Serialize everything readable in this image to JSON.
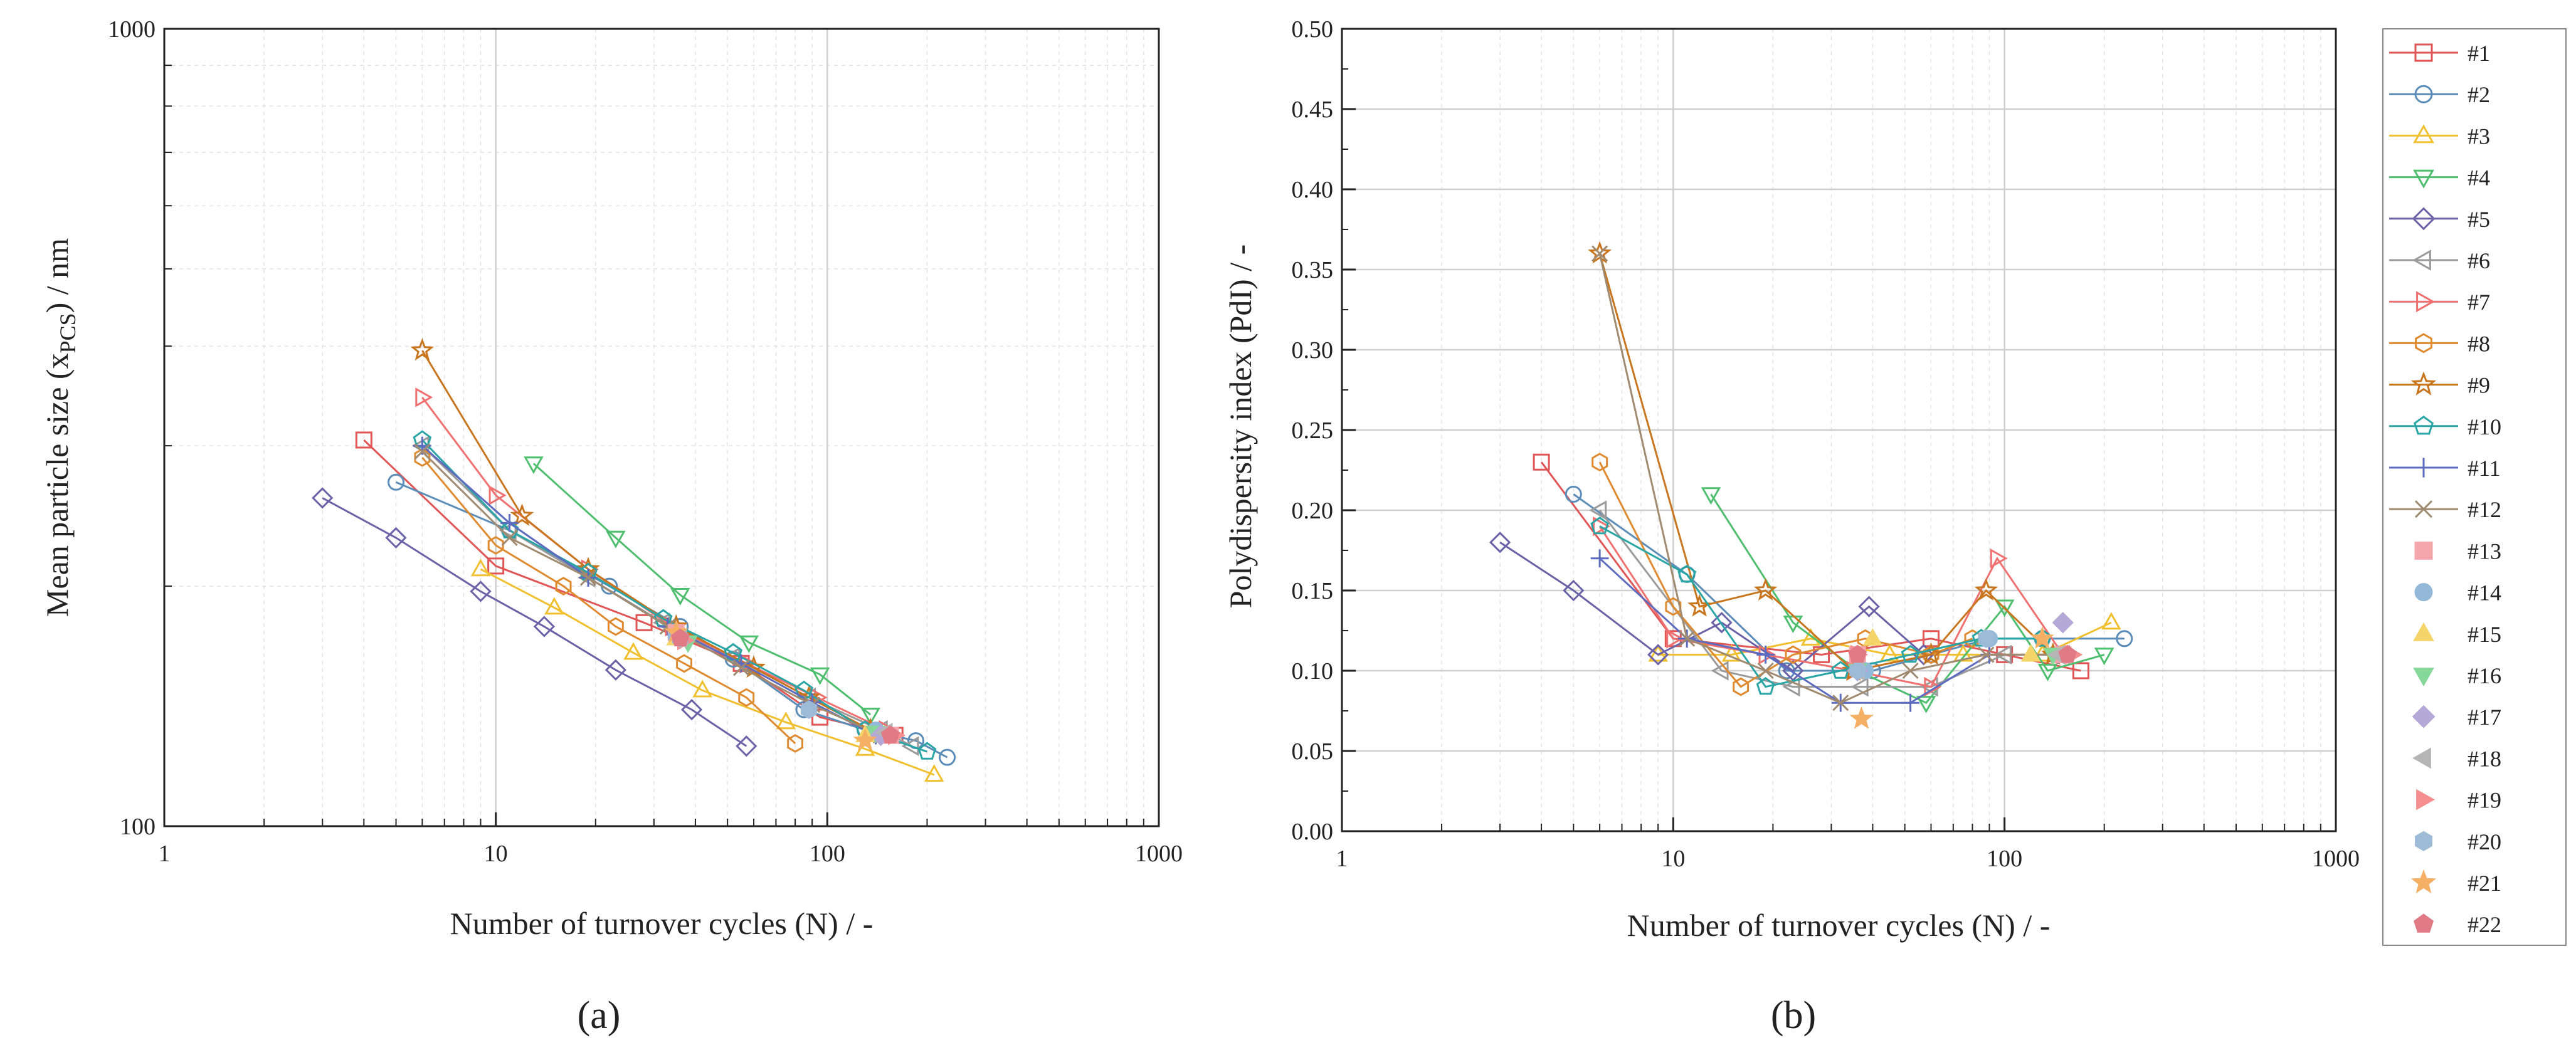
{
  "chart_data": [
    {
      "type": "line",
      "panel_label": "(a)",
      "xlabel": "Number of turnover cycles (N) / -",
      "ylabel_main": "Mean particle size (x",
      "ylabel_sub": "PCS",
      "ylabel_tail": ") / nm",
      "xscale": "log",
      "yscale": "log",
      "xlim": [
        1,
        1000
      ],
      "ylim": [
        100,
        1000
      ],
      "xticks": [
        {
          "v": 1,
          "label": "1"
        },
        {
          "v": 10,
          "label": "10"
        },
        {
          "v": 100,
          "label": "100"
        },
        {
          "v": 1000,
          "label": "1000"
        }
      ],
      "yticks": [
        {
          "v": 100,
          "label": "100"
        },
        {
          "v": 1000,
          "label": "1000"
        }
      ],
      "grid": true,
      "series": [
        {
          "name": "#1",
          "x": [
            4,
            10,
            28,
            55,
            95,
            160
          ],
          "y": [
            305,
            212,
            180,
            160,
            137,
            130
          ]
        },
        {
          "name": "#2",
          "x": [
            5,
            11,
            22,
            36,
            52,
            85,
            130,
            185,
            230
          ],
          "y": [
            270,
            235,
            200,
            178,
            162,
            140,
            132,
            128,
            122
          ]
        },
        {
          "name": "#3",
          "x": [
            9,
            15,
            26,
            42,
            75,
            130,
            210
          ],
          "y": [
            210,
            188,
            165,
            148,
            135,
            125,
            116
          ]
        },
        {
          "name": "#4",
          "x": [
            13,
            23,
            36,
            58,
            95,
            135
          ],
          "y": [
            285,
            230,
            195,
            170,
            155,
            138
          ]
        },
        {
          "name": "#5",
          "x": [
            3,
            5,
            9,
            14,
            23,
            39,
            57
          ],
          "y": [
            258,
            230,
            197,
            178,
            157,
            140,
            126
          ]
        },
        {
          "name": "#6",
          "x": [
            6,
            11,
            19,
            32,
            52,
            88,
            145,
            180
          ],
          "y": [
            300,
            235,
            205,
            180,
            163,
            145,
            132,
            126
          ]
        },
        {
          "name": "#7",
          "x": [
            6,
            10,
            19,
            34,
            57,
            93,
            150
          ],
          "y": [
            345,
            260,
            210,
            178,
            160,
            145,
            132
          ]
        },
        {
          "name": "#8",
          "x": [
            6,
            10,
            16,
            23,
            37,
            57,
            80
          ],
          "y": [
            290,
            225,
            200,
            178,
            160,
            145,
            127
          ]
        },
        {
          "name": "#9",
          "x": [
            6,
            12,
            19,
            35,
            60,
            88,
            135
          ],
          "y": [
            395,
            245,
            210,
            178,
            158,
            145,
            132
          ]
        },
        {
          "name": "#10",
          "x": [
            6,
            11,
            19,
            32,
            52,
            85,
            130,
            200
          ],
          "y": [
            305,
            235,
            208,
            182,
            165,
            148,
            132,
            124
          ]
        },
        {
          "name": "#11",
          "x": [
            6,
            11,
            19,
            33,
            55,
            90,
            140
          ],
          "y": [
            300,
            240,
            205,
            178,
            160,
            143,
            130
          ]
        },
        {
          "name": "#12",
          "x": [
            6,
            11,
            19,
            33,
            55,
            90,
            145
          ],
          "y": [
            295,
            230,
            205,
            178,
            158,
            142,
            130
          ]
        },
        {
          "name": "#13",
          "x": [
            35,
            155
          ],
          "y": [
            175,
            130
          ]
        },
        {
          "name": "#14",
          "x": [
            35,
            140
          ],
          "y": [
            173,
            132
          ]
        },
        {
          "name": "#15",
          "x": [
            35,
            130
          ],
          "y": [
            172,
            130
          ]
        },
        {
          "name": "#16",
          "x": [
            38,
            140
          ],
          "y": [
            170,
            131
          ]
        },
        {
          "name": "#17",
          "x": [
            36,
            145
          ],
          "y": [
            172,
            130
          ]
        },
        {
          "name": "#18",
          "x": [
            36,
            150
          ],
          "y": [
            172,
            131
          ]
        },
        {
          "name": "#19",
          "x": [
            37,
            160
          ],
          "y": [
            171,
            130
          ]
        },
        {
          "name": "#20",
          "x": [
            36,
            88
          ],
          "y": [
            172,
            140
          ]
        },
        {
          "name": "#21",
          "x": [
            35,
            130
          ],
          "y": [
            175,
            128
          ]
        },
        {
          "name": "#22",
          "x": [
            36,
            155
          ],
          "y": [
            172,
            130
          ]
        }
      ]
    },
    {
      "type": "line",
      "panel_label": "(b)",
      "xlabel": "Number of turnover cycles (N) / -",
      "ylabel": "Polydispersity index (PdI) / -",
      "xscale": "log",
      "yscale": "linear",
      "xlim": [
        1,
        1000
      ],
      "ylim": [
        0,
        0.5
      ],
      "xticks": [
        {
          "v": 1,
          "label": "1"
        },
        {
          "v": 10,
          "label": "10"
        },
        {
          "v": 100,
          "label": "100"
        },
        {
          "v": 1000,
          "label": "1000"
        }
      ],
      "yticks": [
        {
          "v": 0,
          "label": "0.00"
        },
        {
          "v": 0.05,
          "label": "0.05"
        },
        {
          "v": 0.1,
          "label": "0.10"
        },
        {
          "v": 0.15,
          "label": "0.15"
        },
        {
          "v": 0.2,
          "label": "0.20"
        },
        {
          "v": 0.25,
          "label": "0.25"
        },
        {
          "v": 0.3,
          "label": "0.30"
        },
        {
          "v": 0.35,
          "label": "0.35"
        },
        {
          "v": 0.4,
          "label": "0.40"
        },
        {
          "v": 0.45,
          "label": "0.45"
        },
        {
          "v": 0.5,
          "label": "0.50"
        }
      ],
      "grid": true,
      "series": [
        {
          "name": "#1",
          "x": [
            4,
            10,
            28,
            60,
            100,
            170
          ],
          "y": [
            0.23,
            0.12,
            0.11,
            0.12,
            0.11,
            0.1
          ]
        },
        {
          "name": "#2",
          "x": [
            5,
            11,
            22,
            40,
            60,
            90,
            130,
            230
          ],
          "y": [
            0.21,
            0.16,
            0.1,
            0.1,
            0.11,
            0.12,
            0.12,
            0.12
          ]
        },
        {
          "name": "#3",
          "x": [
            9,
            15,
            26,
            45,
            75,
            130,
            210
          ],
          "y": [
            0.11,
            0.11,
            0.12,
            0.11,
            0.11,
            0.11,
            0.13
          ]
        },
        {
          "name": "#4",
          "x": [
            13,
            23,
            36,
            58,
            100,
            135,
            200
          ],
          "y": [
            0.21,
            0.13,
            0.1,
            0.08,
            0.14,
            0.1,
            0.11
          ]
        },
        {
          "name": "#5",
          "x": [
            3,
            5,
            9,
            14,
            23,
            39,
            57
          ],
          "y": [
            0.18,
            0.15,
            0.11,
            0.13,
            0.1,
            0.14,
            0.11
          ]
        },
        {
          "name": "#6",
          "x": [
            6,
            14,
            23,
            37,
            60,
            100,
            150
          ],
          "y": [
            0.2,
            0.1,
            0.09,
            0.09,
            0.09,
            0.11,
            0.11
          ]
        },
        {
          "name": "#7",
          "x": [
            6,
            10,
            19,
            35,
            60,
            95,
            150
          ],
          "y": [
            0.19,
            0.12,
            0.11,
            0.1,
            0.09,
            0.17,
            0.11
          ]
        },
        {
          "name": "#8",
          "x": [
            6,
            10,
            16,
            23,
            38,
            60,
            80
          ],
          "y": [
            0.23,
            0.14,
            0.09,
            0.11,
            0.12,
            0.11,
            0.12
          ]
        },
        {
          "name": "#9",
          "x": [
            6,
            12,
            19,
            35,
            60,
            88,
            140
          ],
          "y": [
            0.36,
            0.14,
            0.15,
            0.1,
            0.11,
            0.15,
            0.11
          ]
        },
        {
          "name": "#10",
          "x": [
            6,
            11,
            19,
            32,
            52,
            85,
            130
          ],
          "y": [
            0.19,
            0.16,
            0.09,
            0.1,
            0.11,
            0.12,
            0.12
          ]
        },
        {
          "name": "#11",
          "x": [
            6,
            11,
            19,
            32,
            52,
            90,
            145
          ],
          "y": [
            0.17,
            0.12,
            0.11,
            0.08,
            0.08,
            0.11,
            0.11
          ]
        },
        {
          "name": "#12",
          "x": [
            6,
            11,
            19,
            32,
            52,
            88,
            145
          ],
          "y": [
            0.36,
            0.12,
            0.1,
            0.08,
            0.1,
            0.11,
            0.11
          ]
        },
        {
          "name": "#13",
          "x": [
            36,
            150
          ],
          "y": [
            0.11,
            0.11
          ]
        },
        {
          "name": "#14",
          "x": [
            38,
            90
          ],
          "y": [
            0.1,
            0.12
          ]
        },
        {
          "name": "#15",
          "x": [
            40,
            120
          ],
          "y": [
            0.12,
            0.11
          ]
        },
        {
          "name": "#16",
          "x": [
            36,
            140
          ],
          "y": [
            0.1,
            0.11
          ]
        },
        {
          "name": "#17",
          "x": [
            36,
            150
          ],
          "y": [
            0.1,
            0.13
          ]
        },
        {
          "name": "#18",
          "x": [
            36,
            145
          ],
          "y": [
            0.1,
            0.11
          ]
        },
        {
          "name": "#19",
          "x": [
            36,
            160
          ],
          "y": [
            0.11,
            0.11
          ]
        },
        {
          "name": "#20",
          "x": [
            36,
            88
          ],
          "y": [
            0.1,
            0.12
          ]
        },
        {
          "name": "#21",
          "x": [
            37,
            130
          ],
          "y": [
            0.07,
            0.12
          ]
        },
        {
          "name": "#22",
          "x": [
            36,
            155
          ],
          "y": [
            0.11,
            0.11
          ]
        }
      ]
    }
  ],
  "legend": {
    "placement": "right",
    "entries": [
      {
        "name": "#1",
        "color": "#e05555",
        "marker": "square",
        "fill": false,
        "line": true
      },
      {
        "name": "#2",
        "color": "#5b8db8",
        "marker": "circle",
        "fill": false,
        "line": true
      },
      {
        "name": "#3",
        "color": "#f0c030",
        "marker": "triangle-up",
        "fill": false,
        "line": true
      },
      {
        "name": "#4",
        "color": "#4fbf6f",
        "marker": "triangle-down",
        "fill": false,
        "line": true
      },
      {
        "name": "#5",
        "color": "#6b62a8",
        "marker": "diamond",
        "fill": false,
        "line": true
      },
      {
        "name": "#6",
        "color": "#9a9a9a",
        "marker": "triangle-left",
        "fill": false,
        "line": true
      },
      {
        "name": "#7",
        "color": "#f07070",
        "marker": "triangle-right",
        "fill": false,
        "line": true
      },
      {
        "name": "#8",
        "color": "#e08a30",
        "marker": "hexagon",
        "fill": false,
        "line": true
      },
      {
        "name": "#9",
        "color": "#c8751e",
        "marker": "star",
        "fill": false,
        "line": true
      },
      {
        "name": "#10",
        "color": "#2aa5a5",
        "marker": "pentagon",
        "fill": false,
        "line": true
      },
      {
        "name": "#11",
        "color": "#5c6bc0",
        "marker": "plus",
        "fill": false,
        "line": true
      },
      {
        "name": "#12",
        "color": "#a08a70",
        "marker": "cross",
        "fill": false,
        "line": true
      },
      {
        "name": "#13",
        "color": "#f4a6ac",
        "marker": "square",
        "fill": true,
        "line": false
      },
      {
        "name": "#14",
        "color": "#93b8d8",
        "marker": "circle",
        "fill": true,
        "line": false
      },
      {
        "name": "#15",
        "color": "#f5d46a",
        "marker": "triangle-up",
        "fill": true,
        "line": false
      },
      {
        "name": "#16",
        "color": "#86d79a",
        "marker": "triangle-down",
        "fill": true,
        "line": false
      },
      {
        "name": "#17",
        "color": "#b4a8d6",
        "marker": "diamond",
        "fill": true,
        "line": false
      },
      {
        "name": "#18",
        "color": "#b5b5b5",
        "marker": "triangle-left",
        "fill": true,
        "line": false
      },
      {
        "name": "#19",
        "color": "#f58f8f",
        "marker": "triangle-right",
        "fill": true,
        "line": false
      },
      {
        "name": "#20",
        "color": "#9dbad6",
        "marker": "hexagon",
        "fill": true,
        "line": false
      },
      {
        "name": "#21",
        "color": "#f5b065",
        "marker": "star",
        "fill": true,
        "line": false
      },
      {
        "name": "#22",
        "color": "#e07a85",
        "marker": "pentagon",
        "fill": true,
        "line": false
      }
    ]
  }
}
